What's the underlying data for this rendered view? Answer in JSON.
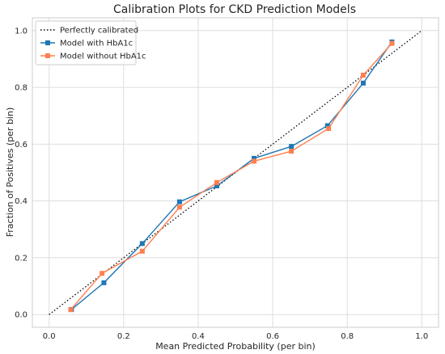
{
  "chart_data": {
    "type": "line",
    "title": "Calibration Plots for CKD Prediction Models",
    "xlabel": "Mean Predicted Probability (per bin)",
    "ylabel": "Fraction of Positives (per bin)",
    "xlim": [
      -0.045,
      1.045
    ],
    "ylim": [
      -0.045,
      1.045
    ],
    "xticks": [
      "0.0",
      "0.2",
      "0.4",
      "0.6",
      "0.8",
      "1.0"
    ],
    "yticks": [
      "0.0",
      "0.2",
      "0.4",
      "0.6",
      "0.8",
      "1.0"
    ],
    "grid": true,
    "legend_position": "top-left",
    "series": [
      {
        "name": "Perfectly calibrated",
        "style": "dotted",
        "color": "#000000",
        "x": [
          0.0,
          1.0
        ],
        "y": [
          0.0,
          1.0
        ]
      },
      {
        "name": "Model with HbA1c",
        "style": "solid",
        "marker": "square",
        "color": "#1f77b4",
        "x": [
          0.06,
          0.147,
          0.25,
          0.35,
          0.45,
          0.55,
          0.65,
          0.747,
          0.843,
          0.92
        ],
        "y": [
          0.018,
          0.112,
          0.25,
          0.397,
          0.453,
          0.55,
          0.592,
          0.665,
          0.815,
          0.96
        ]
      },
      {
        "name": "Model without HbA1c",
        "style": "solid",
        "marker": "square",
        "color": "#ff7f50",
        "x": [
          0.058,
          0.142,
          0.25,
          0.35,
          0.45,
          0.55,
          0.65,
          0.75,
          0.843,
          0.92
        ],
        "y": [
          0.017,
          0.145,
          0.223,
          0.378,
          0.465,
          0.54,
          0.575,
          0.655,
          0.843,
          0.955
        ]
      }
    ]
  }
}
